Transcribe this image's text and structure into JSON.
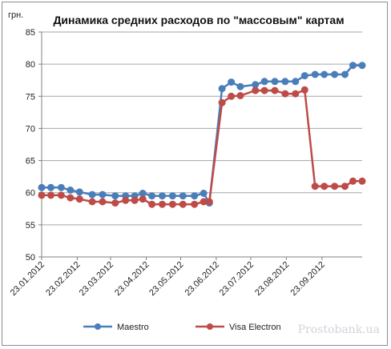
{
  "chart_data": {
    "type": "line",
    "title": "Динамика средних расходов по \"массовым\" картам",
    "ylabel": "грн.",
    "xlabel": "",
    "ylim": [
      50,
      85
    ],
    "yticks": [
      "50",
      "55",
      "60",
      "65",
      "70",
      "75",
      "80",
      "85"
    ],
    "xtick_labels": [
      "23.01.2012",
      "23.02.2012",
      "23.03.2012",
      "23.04.2012",
      "23.05.2012",
      "23.06.2012",
      "23.07.2012",
      "23.08.2012",
      "23.09.2012"
    ],
    "grid": "horizontal",
    "legend_position": "bottom",
    "series": [
      {
        "name": "Maestro",
        "color": "#4a7ebb",
        "points": [
          [
            "2012-01-23",
            60.8
          ],
          [
            "2012-01-31",
            60.8
          ],
          [
            "2012-02-09",
            60.8
          ],
          [
            "2012-02-17",
            60.4
          ],
          [
            "2012-02-25",
            60.1
          ],
          [
            "2012-03-07",
            59.7
          ],
          [
            "2012-03-16",
            59.7
          ],
          [
            "2012-03-27",
            59.5
          ],
          [
            "2012-04-05",
            59.5
          ],
          [
            "2012-04-13",
            59.5
          ],
          [
            "2012-04-20",
            59.9
          ],
          [
            "2012-04-28",
            59.5
          ],
          [
            "2012-05-07",
            59.5
          ],
          [
            "2012-05-16",
            59.5
          ],
          [
            "2012-05-25",
            59.5
          ],
          [
            "2012-06-04",
            59.5
          ],
          [
            "2012-06-12",
            59.9
          ],
          [
            "2012-06-17",
            58.4
          ],
          [
            "2012-06-28",
            76.2
          ],
          [
            "2012-07-06",
            77.2
          ],
          [
            "2012-07-14",
            76.5
          ],
          [
            "2012-07-27",
            76.8
          ],
          [
            "2012-08-04",
            77.3
          ],
          [
            "2012-08-13",
            77.3
          ],
          [
            "2012-08-22",
            77.3
          ],
          [
            "2012-08-31",
            77.3
          ],
          [
            "2012-09-08",
            78.2
          ],
          [
            "2012-09-17",
            78.4
          ],
          [
            "2012-09-25",
            78.4
          ],
          [
            "2012-10-04",
            78.4
          ],
          [
            "2012-10-13",
            78.4
          ],
          [
            "2012-10-20",
            79.8
          ],
          [
            "2012-10-28",
            79.8
          ]
        ]
      },
      {
        "name": "Visa Electron",
        "color": "#be4b48",
        "points": [
          [
            "2012-01-23",
            59.6
          ],
          [
            "2012-01-31",
            59.6
          ],
          [
            "2012-02-09",
            59.6
          ],
          [
            "2012-02-17",
            59.2
          ],
          [
            "2012-02-25",
            59.0
          ],
          [
            "2012-03-07",
            58.6
          ],
          [
            "2012-03-16",
            58.6
          ],
          [
            "2012-03-27",
            58.4
          ],
          [
            "2012-04-05",
            58.8
          ],
          [
            "2012-04-13",
            58.8
          ],
          [
            "2012-04-20",
            59.0
          ],
          [
            "2012-04-28",
            58.2
          ],
          [
            "2012-05-07",
            58.2
          ],
          [
            "2012-05-16",
            58.2
          ],
          [
            "2012-05-25",
            58.2
          ],
          [
            "2012-06-04",
            58.2
          ],
          [
            "2012-06-12",
            58.6
          ],
          [
            "2012-06-17",
            58.6
          ],
          [
            "2012-06-28",
            74.0
          ],
          [
            "2012-07-06",
            75.0
          ],
          [
            "2012-07-14",
            75.1
          ],
          [
            "2012-07-27",
            75.9
          ],
          [
            "2012-08-04",
            75.9
          ],
          [
            "2012-08-13",
            75.9
          ],
          [
            "2012-08-22",
            75.4
          ],
          [
            "2012-08-31",
            75.4
          ],
          [
            "2012-09-08",
            76.0
          ],
          [
            "2012-09-17",
            61.0
          ],
          [
            "2012-09-25",
            61.0
          ],
          [
            "2012-10-04",
            61.0
          ],
          [
            "2012-10-13",
            61.0
          ],
          [
            "2012-10-20",
            61.8
          ],
          [
            "2012-10-28",
            61.8
          ]
        ]
      }
    ]
  },
  "watermark": "Prostobank.ua"
}
